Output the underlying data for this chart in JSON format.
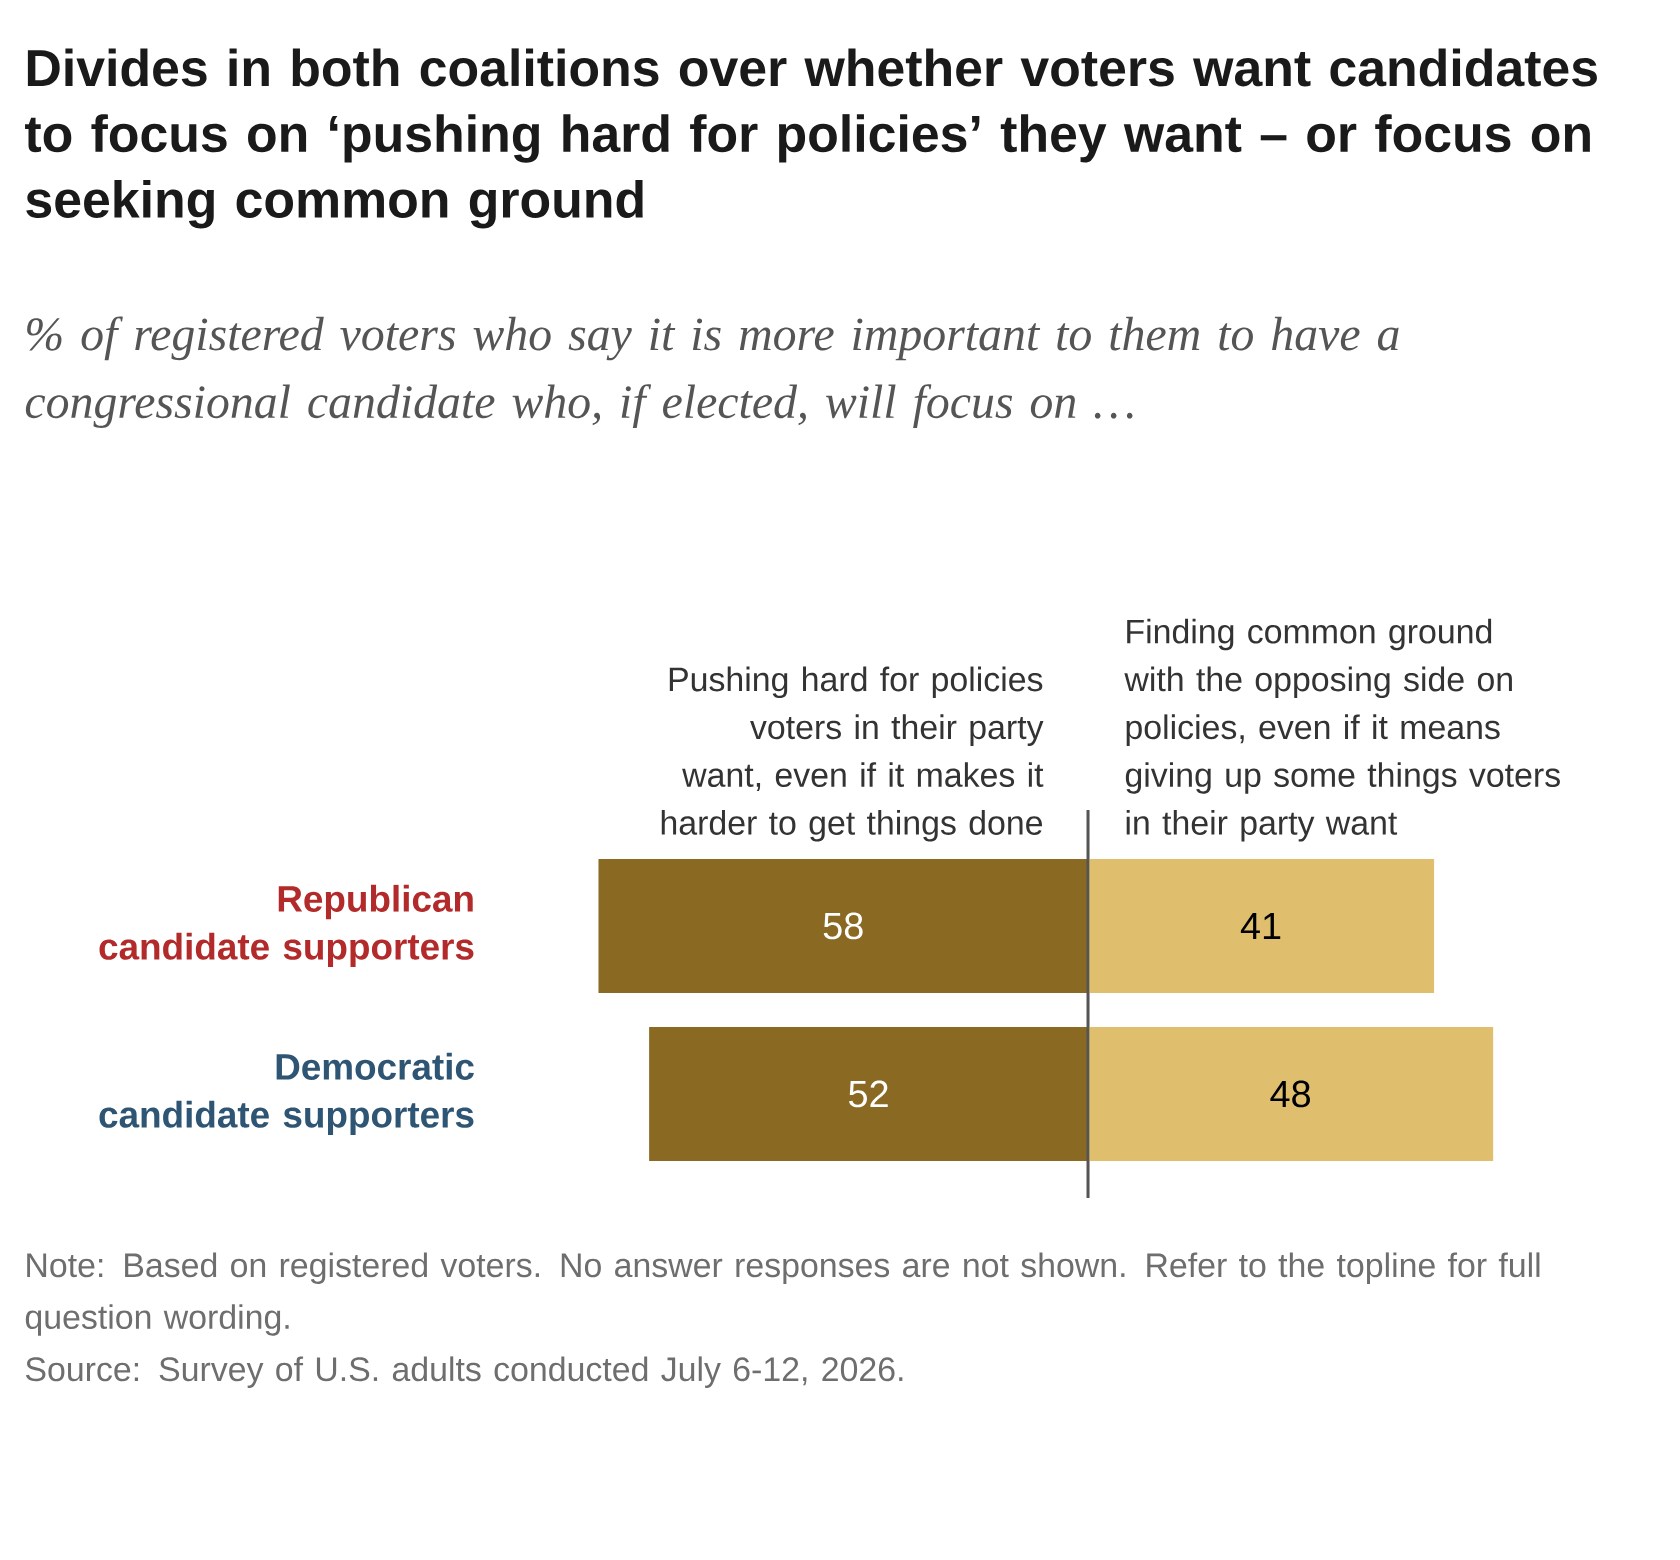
{
  "chart_data": [
    {
      "type": "bar",
      "orientation": "horizontal",
      "title": "Divides in both coalitions over whether voters want candidates to focus on ‘pushing hard for policies’ they want – or focus on seeking common ground",
      "subtitle": "% of registered voters who say it is more important to them to have a congressional candidate who, if elected, will focus on …",
      "categories": [
        "Republican candidate supporters",
        "Democratic candidate supporters"
      ],
      "series": [
        {
          "name": "Pushing hard for policies voters in their party want, even if it makes it harder to get things done",
          "color": "#8a6a22",
          "values": [
            58,
            52
          ]
        }
      ],
      "tick_labels": "y",
      "data_labels": true
    },
    {
      "type": "bar",
      "orientation": "horizontal",
      "categories": [
        null,
        null
      ],
      "series": [
        {
          "name": "Finding common ground with the opposing side on policies, even if it means giving up some things voters in their party want",
          "color": "#dfbf6e",
          "values": [
            41,
            48
          ]
        }
      ],
      "tick_labels": false,
      "data_labels": true,
      "annotations": [
        "Note: Based on registered voters. No answer responses are not shown. Refer to the topline for full question wording.",
        "Source: Survey of U.S. adults conducted July 6-12, 2026."
      ]
    }
  ]
}
